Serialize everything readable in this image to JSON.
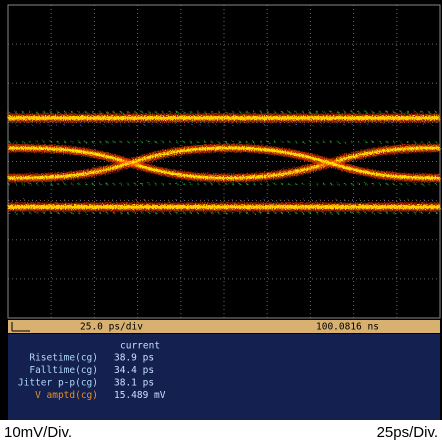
{
  "status_bar": {
    "timebase": "25.0 ps/div",
    "position": "100.0816 ns"
  },
  "measurements": {
    "header": "current",
    "rows": [
      [
        "Risetime(cg)",
        "38.9 ps"
      ],
      [
        "Falltime(cg)",
        "34.4 ps"
      ],
      [
        "Jitter p-p(cg)",
        "38.1 ps"
      ],
      [
        "V amptd(cg)",
        "15.489 mV"
      ]
    ]
  },
  "footer": {
    "left": "10mV/Div.",
    "right": "25ps/Div."
  }
}
